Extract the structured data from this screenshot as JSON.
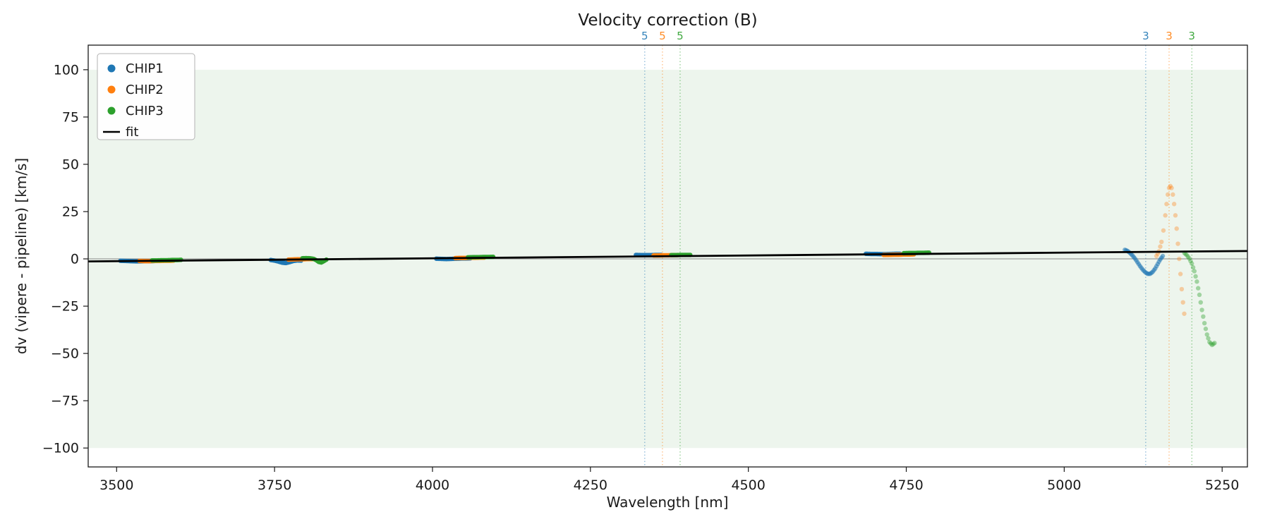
{
  "chart_data": {
    "type": "scatter",
    "title": "Velocity correction (B)",
    "xlabel": "Wavelength [nm]",
    "ylabel": "dv (vipere - pipeline) [km/s]",
    "xlim": [
      3455,
      5290
    ],
    "ylim": [
      -110,
      113
    ],
    "xticks": [
      3500,
      3750,
      4000,
      4250,
      4500,
      4750,
      5000,
      5250
    ],
    "yticks": [
      -100,
      -75,
      -50,
      -25,
      0,
      25,
      50,
      75,
      100
    ],
    "grid": false,
    "legend_position": "upper-left",
    "band": {
      "ymin": -100,
      "ymax": 100,
      "color": "#edf5ed"
    },
    "zero_line": {
      "y": 0,
      "color": "#888888"
    },
    "fit": {
      "label": "fit",
      "color": "#000000",
      "points": [
        [
          3455,
          -1.34
        ],
        [
          5290,
          4.17
        ]
      ]
    },
    "vlines": [
      {
        "x": 4336,
        "color": "#1f77b4",
        "label": "5"
      },
      {
        "x": 4364,
        "color": "#ff7f0e",
        "label": "5"
      },
      {
        "x": 4392,
        "color": "#2ca02c",
        "label": "5"
      },
      {
        "x": 5129,
        "color": "#1f77b4",
        "label": "3"
      },
      {
        "x": 5166,
        "color": "#ff7f0e",
        "label": "3"
      },
      {
        "x": 5202,
        "color": "#2ca02c",
        "label": "3"
      }
    ],
    "legend": [
      {
        "label": "CHIP1",
        "color": "#1f77b4",
        "marker": "dot"
      },
      {
        "label": "CHIP2",
        "color": "#ff7f0e",
        "marker": "dot"
      },
      {
        "label": "CHIP3",
        "color": "#2ca02c",
        "marker": "dot"
      },
      {
        "label": "fit",
        "color": "#000000",
        "marker": "line"
      }
    ],
    "series": [
      {
        "name": "CHIP1",
        "color": "#1f77b4",
        "segments": [
          {
            "alpha": 0.95,
            "points": [
              [
                3506,
                -1.0
              ],
              [
                3514,
                -1.1
              ],
              [
                3522,
                -1.2
              ],
              [
                3530,
                -1.3
              ],
              [
                3538,
                -1.3
              ],
              [
                3546,
                -1.2
              ],
              [
                3554,
                -1.2
              ],
              [
                3560,
                -1.1
              ]
            ]
          },
          {
            "alpha": 0.95,
            "points": [
              [
                3744,
                -0.6
              ],
              [
                3750,
                -0.9
              ],
              [
                3756,
                -1.4
              ],
              [
                3762,
                -2.0
              ],
              [
                3768,
                -2.2
              ],
              [
                3774,
                -1.7
              ],
              [
                3780,
                -1.1
              ],
              [
                3786,
                -0.8
              ],
              [
                3792,
                -0.9
              ]
            ]
          },
          {
            "alpha": 0.95,
            "points": [
              [
                4006,
                0.1
              ],
              [
                4014,
                0.0
              ],
              [
                4022,
                -0.1
              ],
              [
                4030,
                0.0
              ],
              [
                4038,
                0.1
              ],
              [
                4046,
                0.2
              ],
              [
                4054,
                0.2
              ],
              [
                4060,
                0.3
              ]
            ]
          },
          {
            "alpha": 0.95,
            "points": [
              [
                4322,
                2.1
              ],
              [
                4330,
                2.0
              ],
              [
                4338,
                2.0
              ],
              [
                4346,
                2.0
              ],
              [
                4354,
                2.1
              ],
              [
                4362,
                2.1
              ]
            ]
          },
          {
            "alpha": 0.95,
            "points": [
              [
                4686,
                2.7
              ],
              [
                4694,
                2.6
              ],
              [
                4702,
                2.6
              ],
              [
                4710,
                2.5
              ],
              [
                4718,
                2.5
              ],
              [
                4726,
                2.6
              ],
              [
                4734,
                2.7
              ],
              [
                4740,
                2.7
              ]
            ]
          },
          {
            "alpha": 0.55,
            "points": [
              [
                5096,
                4.8
              ],
              [
                5100,
                4.2
              ],
              [
                5104,
                3.2
              ],
              [
                5108,
                1.8
              ],
              [
                5112,
                0.2
              ],
              [
                5116,
                -1.8
              ],
              [
                5120,
                -3.8
              ],
              [
                5124,
                -5.6
              ],
              [
                5128,
                -7.0
              ],
              [
                5132,
                -7.9
              ],
              [
                5136,
                -7.9
              ],
              [
                5140,
                -6.9
              ],
              [
                5144,
                -5.1
              ],
              [
                5148,
                -2.7
              ],
              [
                5152,
                -0.3
              ],
              [
                5156,
                1.5
              ]
            ]
          }
        ]
      },
      {
        "name": "CHIP2",
        "color": "#ff7f0e",
        "segments": [
          {
            "alpha": 0.95,
            "points": [
              [
                3536,
                -1.1
              ],
              [
                3544,
                -1.2
              ],
              [
                3552,
                -1.2
              ],
              [
                3560,
                -1.1
              ],
              [
                3568,
                -1.1
              ],
              [
                3576,
                -1.0
              ],
              [
                3584,
                -1.0
              ],
              [
                3590,
                -0.9
              ]
            ]
          },
          {
            "alpha": 0.95,
            "points": [
              [
                3772,
                -0.4
              ],
              [
                3780,
                -0.3
              ],
              [
                3788,
                -0.2
              ],
              [
                3796,
                -0.2
              ],
              [
                3804,
                -0.1
              ],
              [
                3812,
                -0.1
              ]
            ]
          },
          {
            "alpha": 0.95,
            "points": [
              [
                4036,
                0.4
              ],
              [
                4044,
                0.5
              ],
              [
                4052,
                0.5
              ],
              [
                4060,
                0.6
              ],
              [
                4068,
                0.6
              ],
              [
                4076,
                0.7
              ],
              [
                4082,
                0.7
              ]
            ]
          },
          {
            "alpha": 0.95,
            "points": [
              [
                4350,
                1.8
              ],
              [
                4358,
                1.8
              ],
              [
                4366,
                1.9
              ],
              [
                4374,
                1.9
              ],
              [
                4382,
                2.0
              ],
              [
                4388,
                2.0
              ]
            ]
          },
          {
            "alpha": 0.95,
            "points": [
              [
                4714,
                2.1
              ],
              [
                4722,
                2.1
              ],
              [
                4730,
                2.2
              ],
              [
                4738,
                2.2
              ],
              [
                4746,
                2.3
              ],
              [
                4754,
                2.3
              ],
              [
                4762,
                2.4
              ]
            ]
          },
          {
            "alpha": 0.35,
            "points": [
              [
                5146,
                1.5
              ],
              [
                5150,
                4
              ],
              [
                5154,
                9
              ],
              [
                5157,
                15
              ],
              [
                5160,
                23
              ],
              [
                5162,
                29
              ],
              [
                5164,
                34
              ],
              [
                5166,
                37.5
              ],
              [
                5168,
                38.5
              ],
              [
                5170,
                37.5
              ],
              [
                5172,
                34
              ],
              [
                5174,
                29
              ],
              [
                5176,
                23
              ],
              [
                5178,
                16
              ],
              [
                5180,
                8
              ],
              [
                5182,
                0
              ],
              [
                5184,
                -8
              ],
              [
                5186,
                -16
              ],
              [
                5188,
                -23
              ],
              [
                5190,
                -29
              ]
            ]
          }
        ]
      },
      {
        "name": "CHIP3",
        "color": "#2ca02c",
        "segments": [
          {
            "alpha": 0.95,
            "points": [
              [
                3556,
                -0.8
              ],
              [
                3564,
                -0.8
              ],
              [
                3572,
                -0.7
              ],
              [
                3580,
                -0.7
              ],
              [
                3588,
                -0.6
              ],
              [
                3596,
                -0.6
              ],
              [
                3602,
                -0.5
              ]
            ]
          },
          {
            "alpha": 0.95,
            "points": [
              [
                3794,
                0.3
              ],
              [
                3800,
                0.4
              ],
              [
                3806,
                0.3
              ],
              [
                3812,
                0.0
              ],
              [
                3816,
                -0.7
              ],
              [
                3820,
                -1.6
              ],
              [
                3824,
                -1.9
              ],
              [
                3828,
                -1.2
              ],
              [
                3832,
                -0.4
              ]
            ]
          },
          {
            "alpha": 0.95,
            "points": [
              [
                4056,
                0.8
              ],
              [
                4064,
                0.9
              ],
              [
                4072,
                0.9
              ],
              [
                4080,
                1.0
              ],
              [
                4088,
                1.0
              ],
              [
                4096,
                1.1
              ]
            ]
          },
          {
            "alpha": 0.95,
            "points": [
              [
                4378,
                2.0
              ],
              [
                4386,
                2.0
              ],
              [
                4394,
                2.1
              ],
              [
                4402,
                2.1
              ],
              [
                4408,
                2.1
              ]
            ]
          },
          {
            "alpha": 0.95,
            "points": [
              [
                4746,
                3.0
              ],
              [
                4754,
                3.1
              ],
              [
                4762,
                3.1
              ],
              [
                4770,
                3.2
              ],
              [
                4778,
                3.2
              ],
              [
                4786,
                3.3
              ]
            ]
          },
          {
            "alpha": 0.4,
            "points": [
              [
                5190,
                3.2
              ],
              [
                5194,
                2.0
              ],
              [
                5198,
                0.2
              ],
              [
                5202,
                -2.5
              ],
              [
                5206,
                -6.5
              ],
              [
                5210,
                -12
              ],
              [
                5214,
                -19
              ],
              [
                5218,
                -27
              ],
              [
                5222,
                -34
              ],
              [
                5226,
                -40
              ],
              [
                5230,
                -44
              ],
              [
                5234,
                -45.5
              ],
              [
                5238,
                -44.5
              ]
            ]
          }
        ]
      }
    ]
  }
}
